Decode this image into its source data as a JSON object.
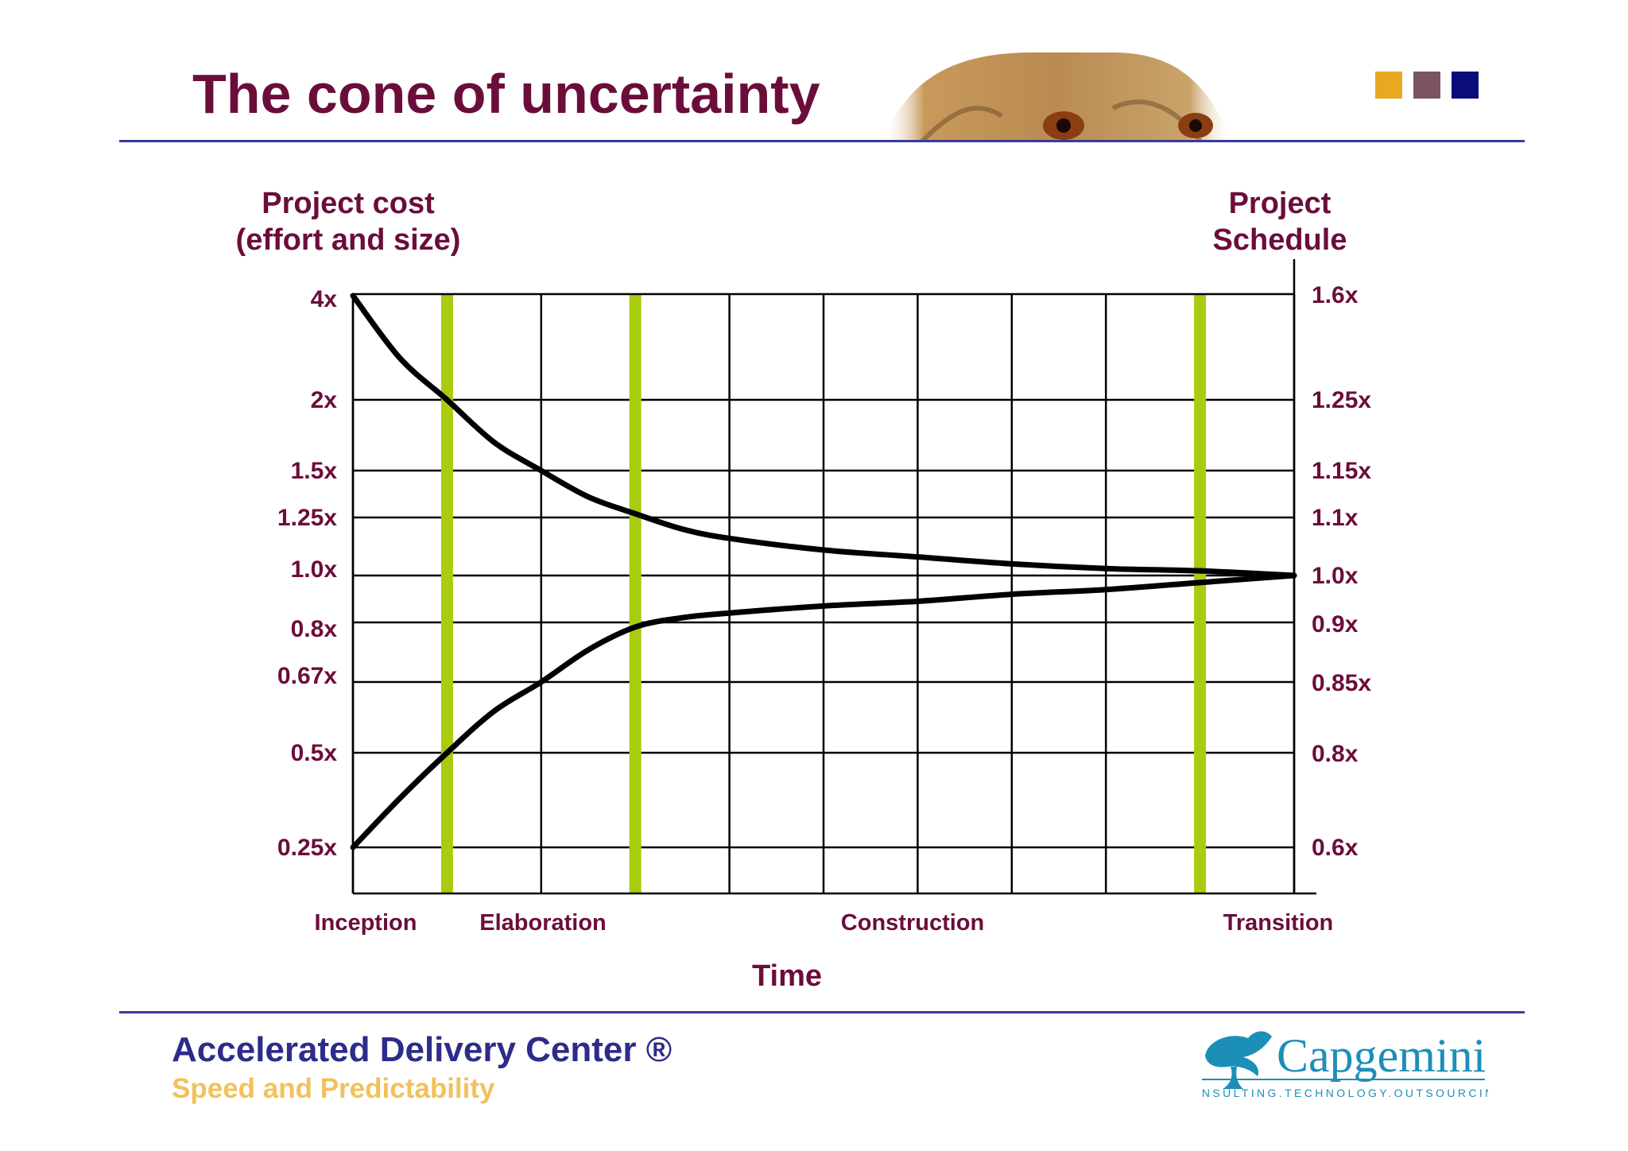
{
  "slide": {
    "title": "The cone of uncertainty",
    "title_color": "#6b0d3a",
    "rule_color": "#3a3a9a",
    "squares": [
      "#e8a820",
      "#7a5560",
      "#0b0b7a"
    ]
  },
  "header_image": {
    "subject": "lion-eyes-photo"
  },
  "chart_data": {
    "type": "line",
    "left_axis_title": [
      "Project cost",
      "(effort and size)"
    ],
    "right_axis_title": [
      "Project",
      "Schedule"
    ],
    "xlabel": "Time",
    "x_categories": [
      "Inception",
      "Elaboration",
      "Construction",
      "Transition"
    ],
    "left_ticks": [
      "4x",
      "2x",
      "1.5x",
      "1.25x",
      "1.0x",
      "0.8x",
      "0.67x",
      "0.5x",
      "0.25x"
    ],
    "right_ticks": [
      "1.6x",
      "1.25x",
      "1.15x",
      "1.1x",
      "1.0x",
      "0.9x",
      "0.85x",
      "0.8x",
      "0.6x"
    ],
    "x_range": [
      0,
      10
    ],
    "grid": true,
    "milestones": [
      1,
      3,
      9
    ],
    "milestone_color": "#a8cc10",
    "series": [
      {
        "x": [
          0,
          0.5,
          1,
          1.5,
          2,
          2.5,
          3,
          3.5,
          4,
          5,
          6,
          7,
          8,
          9,
          10
        ],
        "values": [
          4,
          2.8,
          2,
          1.7,
          1.5,
          1.36,
          1.27,
          1.2,
          1.16,
          1.11,
          1.08,
          1.05,
          1.03,
          1.02,
          1.0
        ]
      },
      {
        "x": [
          0,
          0.5,
          1,
          1.5,
          2,
          2.5,
          3,
          3.5,
          4,
          5,
          6,
          7,
          8,
          9,
          10
        ],
        "values": [
          0.25,
          0.38,
          0.5,
          0.6,
          0.67,
          0.74,
          0.79,
          0.82,
          0.84,
          0.87,
          0.89,
          0.92,
          0.94,
          0.97,
          1.0
        ]
      }
    ]
  },
  "footer": {
    "title": "Accelerated Delivery Center ®",
    "subtitle": "Speed and Predictability",
    "title_color": "#2c2c8a",
    "subtitle_color": "#f2c15a"
  },
  "logo": {
    "name": "Capgemini",
    "tagline": "CONSULTING.TECHNOLOGY.OUTSOURCING",
    "color": "#1c8fb8"
  }
}
